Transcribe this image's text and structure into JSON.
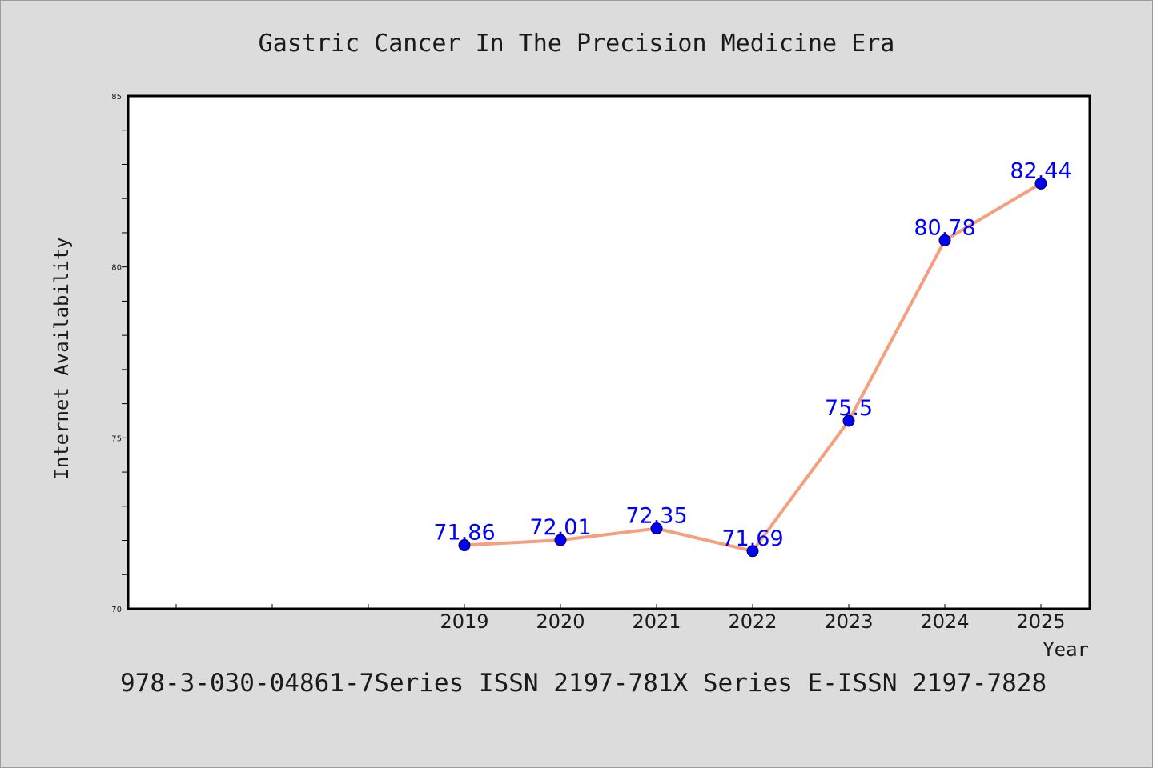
{
  "chart_data": {
    "type": "line",
    "title": "Gastric Cancer In The Precision Medicine Era",
    "xlabel": "Year",
    "ylabel": "Internet Availability",
    "footer": "978-3-030-04861-7Series ISSN 2197-781X Series E-ISSN 2197-7828",
    "categories": [
      "2019",
      "2020",
      "2021",
      "2022",
      "2023",
      "2024",
      "2025"
    ],
    "values": [
      71.86,
      72.01,
      72.35,
      71.69,
      75.5,
      80.78,
      82.44
    ],
    "data_labels": [
      "71.86",
      "72.01",
      "72.35",
      "71.69",
      "75.5",
      "80.78",
      "82.44"
    ],
    "ylim": [
      70,
      85
    ],
    "yticks": [
      "70",
      "75",
      "80",
      "85"
    ],
    "grid": false,
    "line_color": "#f4a07e",
    "marker_color": "#0000ff",
    "label_color": "#0000ff"
  }
}
